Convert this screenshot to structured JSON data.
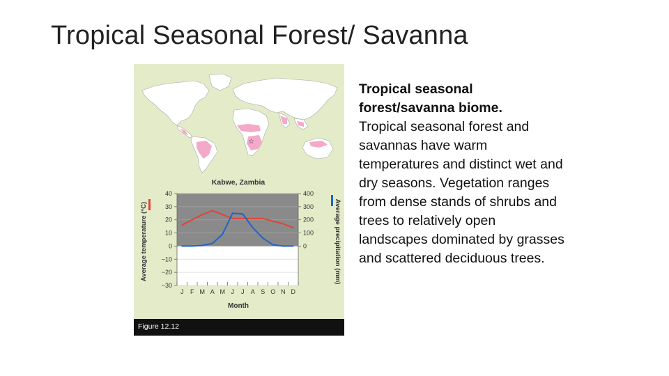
{
  "slide": {
    "title": "Tropical Seasonal Forest/ Savanna"
  },
  "figure": {
    "caption": "Figure 12.12",
    "map_marker": "☆"
  },
  "body_text": {
    "heading": "Tropical seasonal forest/savanna biome.",
    "text": "Tropical seasonal forest and savannas have warm temperatures and distinct wet and dry seasons. Vegetation ranges from dense stands of shrubs and trees to relatively open landscapes dominated by grasses and scattered deciduous trees."
  },
  "colors": {
    "temperature_line": "#e0433a",
    "precipitation_line": "#1f64c8",
    "range_band": "#8a8a8a",
    "biome_fill": "#f4a9c8",
    "figure_bg": "#e3ebc9"
  },
  "chart_data": {
    "type": "line",
    "title": "Kabwe, Zambia",
    "xlabel": "Month",
    "categories": [
      "J",
      "F",
      "M",
      "A",
      "M",
      "J",
      "J",
      "A",
      "S",
      "O",
      "N",
      "D"
    ],
    "y_left": {
      "label": "Average temperature (°C)",
      "ticks": [
        40,
        30,
        20,
        10,
        0,
        -10,
        -20,
        -30
      ],
      "tick_labels": [
        "40",
        "30",
        "20",
        "10",
        "0",
        "−10",
        "−20",
        "−30"
      ],
      "ylim": [
        -30,
        40
      ]
    },
    "y_right": {
      "label": "Average precipitation (mm)",
      "ticks": [
        400,
        300,
        200,
        100,
        0
      ],
      "tick_labels": [
        "400",
        "300",
        "200",
        "100",
        "0"
      ],
      "ylim": [
        0,
        400
      ]
    },
    "shaded_range": {
      "temperature": [
        0,
        40
      ],
      "precipitation": [
        0,
        400
      ]
    },
    "series": [
      {
        "axis": "left",
        "values": [
          16,
          20,
          24,
          27,
          24,
          21,
          21,
          21,
          21,
          19,
          17,
          14
        ]
      },
      {
        "axis": "right",
        "values": [
          0,
          0,
          5,
          20,
          90,
          250,
          245,
          140,
          60,
          10,
          0,
          0
        ]
      }
    ],
    "grid": true
  }
}
